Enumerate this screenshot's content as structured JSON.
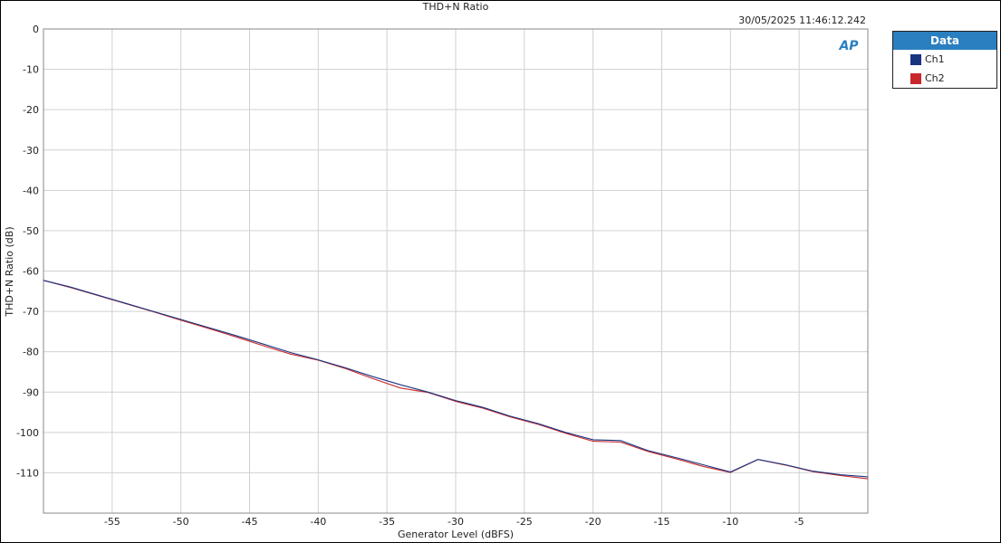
{
  "chart_data": {
    "type": "line",
    "title": "THD+N Ratio",
    "timestamp": "30/05/2025 11:46:12.242",
    "xlabel": "Generator Level (dBFS)",
    "ylabel": "THD+N Ratio (dB)",
    "xlim": [
      -60,
      0
    ],
    "ylim": [
      -120,
      0
    ],
    "xticks": [
      -55,
      -50,
      -45,
      -40,
      -35,
      -30,
      -25,
      -20,
      -15,
      -10,
      -5
    ],
    "yticks": [
      0,
      -10,
      -20,
      -30,
      -40,
      -50,
      -60,
      -70,
      -80,
      -90,
      -100,
      -110
    ],
    "grid": true,
    "legend": {
      "title": "Data",
      "placement": "right"
    },
    "x": [
      -60,
      -58,
      -56,
      -54,
      -52,
      -50,
      -48,
      -46,
      -44,
      -42,
      -40,
      -38,
      -36,
      -34,
      -32,
      -30,
      -28,
      -26,
      -24,
      -22,
      -20,
      -18,
      -16,
      -14,
      -12,
      -10,
      -8,
      -6,
      -4,
      -2,
      0
    ],
    "series": [
      {
        "name": "Ch1",
        "color": "#1a3580",
        "values": [
          -62.3,
          -64.0,
          -66.0,
          -68.0,
          -70.0,
          -72.0,
          -74.0,
          -76.0,
          -78.1,
          -80.2,
          -82.0,
          -84.0,
          -86.2,
          -88.2,
          -90.0,
          -92.1,
          -93.8,
          -96.0,
          -97.8,
          -100.0,
          -101.8,
          -102.0,
          -104.5,
          -106.2,
          -108.0,
          -109.8,
          -106.7,
          -108.0,
          -109.6,
          -110.5,
          -111.0
        ]
      },
      {
        "name": "Ch2",
        "color": "#c8282d",
        "values": [
          -62.3,
          -64.1,
          -66.1,
          -68.1,
          -70.1,
          -72.2,
          -74.2,
          -76.3,
          -78.5,
          -80.6,
          -82.1,
          -84.2,
          -86.7,
          -89.0,
          -90.1,
          -92.3,
          -94.0,
          -96.2,
          -98.0,
          -100.2,
          -102.2,
          -102.4,
          -104.7,
          -106.5,
          -108.4,
          -109.9,
          -106.7,
          -108.1,
          -109.7,
          -110.7,
          -111.5
        ]
      }
    ]
  }
}
